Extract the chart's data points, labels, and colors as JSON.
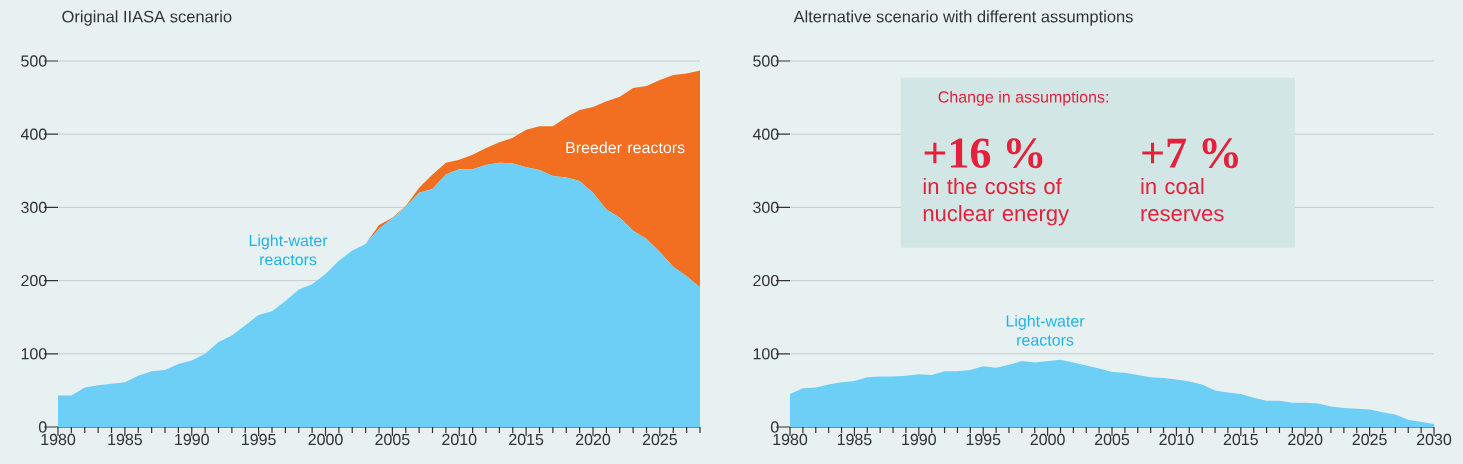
{
  "chart_data": [
    {
      "type": "area",
      "title": "Original IIASA scenario",
      "stacked": true,
      "grid": "y",
      "x": [
        1980,
        1981,
        1982,
        1983,
        1984,
        1985,
        1986,
        1987,
        1988,
        1989,
        1990,
        1991,
        1992,
        1993,
        1994,
        1995,
        1996,
        1997,
        1998,
        1999,
        2000,
        2001,
        2002,
        2003,
        2004,
        2005,
        2006,
        2007,
        2008,
        2009,
        2010,
        2011,
        2012,
        2013,
        2014,
        2015,
        2016,
        2017,
        2018,
        2019,
        2020,
        2021,
        2022,
        2023,
        2024,
        2025,
        2026,
        2027,
        2028
      ],
      "series": [
        {
          "name": "Light-water reactors",
          "color": "#6dcff6",
          "values": [
            43,
            43,
            54,
            57,
            59,
            61,
            70,
            76,
            78,
            86,
            91,
            100,
            116,
            125,
            139,
            153,
            158,
            172,
            188,
            195,
            209,
            227,
            241,
            250,
            271,
            285,
            301,
            320,
            325,
            345,
            352,
            352,
            358,
            361,
            360,
            355,
            351,
            343,
            341,
            336,
            320,
            297,
            286,
            268,
            257,
            239,
            219,
            206,
            191
          ]
        },
        {
          "name": "Breeder reactors",
          "color": "#f26f21",
          "values": [
            0,
            0,
            0,
            0,
            0,
            0,
            0,
            0,
            0,
            0,
            0,
            0,
            0,
            0,
            0,
            0,
            0,
            0,
            0,
            0,
            0,
            0,
            0,
            0,
            5,
            1,
            1,
            7,
            20,
            16,
            13,
            20,
            23,
            28,
            35,
            51,
            60,
            68,
            82,
            97,
            117,
            148,
            165,
            195,
            209,
            235,
            262,
            277,
            296
          ]
        }
      ],
      "xlim": [
        1980,
        2028
      ],
      "ylim": [
        0,
        500
      ],
      "yticks": [
        0,
        100,
        200,
        300,
        400,
        500
      ],
      "xticks": [
        1980,
        {
          "value": 1981,
          "label": null
        },
        {
          "value": 1982,
          "label": null
        },
        {
          "value": 1983,
          "label": null
        },
        {
          "value": 1984,
          "label": null
        },
        1985,
        {
          "value": 1986,
          "label": null
        },
        {
          "value": 1987,
          "label": null
        },
        {
          "value": 1988,
          "label": null
        },
        {
          "value": 1989,
          "label": null
        },
        1990,
        {
          "value": 1991,
          "label": null
        },
        {
          "value": 1992,
          "label": null
        },
        {
          "value": 1993,
          "label": null
        },
        {
          "value": 1994,
          "label": null
        },
        1995,
        {
          "value": 1996,
          "label": null
        },
        {
          "value": 1997,
          "label": null
        },
        {
          "value": 1998,
          "label": null
        },
        {
          "value": 1999,
          "label": null
        },
        2000,
        {
          "value": 2001,
          "label": null
        },
        {
          "value": 2002,
          "label": null
        },
        {
          "value": 2003,
          "label": null
        },
        {
          "value": 2004,
          "label": null
        },
        2005,
        {
          "value": 2006,
          "label": null
        },
        {
          "value": 2007,
          "label": null
        },
        {
          "value": 2008,
          "label": null
        },
        {
          "value": 2009,
          "label": null
        },
        2010,
        {
          "value": 2011,
          "label": null
        },
        {
          "value": 2012,
          "label": null
        },
        {
          "value": 2013,
          "label": null
        },
        {
          "value": 2014,
          "label": null
        },
        2015,
        {
          "value": 2016,
          "label": null
        },
        {
          "value": 2017,
          "label": null
        },
        {
          "value": 2018,
          "label": null
        },
        {
          "value": 2019,
          "label": null
        },
        2020,
        {
          "value": 2021,
          "label": null
        },
        {
          "value": 2022,
          "label": null
        },
        {
          "value": 2023,
          "label": null
        },
        {
          "value": 2024,
          "label": null
        },
        2025,
        {
          "value": 2026,
          "label": null
        },
        {
          "value": 2027,
          "label": null
        },
        {
          "value": 2028,
          "label": null
        }
      ]
    },
    {
      "type": "area",
      "title": "Alternative scenario with different assumptions",
      "grid": "y",
      "x": [
        1980,
        1981,
        1982,
        1983,
        1984,
        1985,
        1986,
        1987,
        1988,
        1989,
        1990,
        1991,
        1992,
        1993,
        1994,
        1995,
        1996,
        1997,
        1998,
        1999,
        2000,
        2001,
        2002,
        2003,
        2004,
        2005,
        2006,
        2007,
        2008,
        2009,
        2010,
        2011,
        2012,
        2013,
        2014,
        2015,
        2016,
        2017,
        2018,
        2019,
        2020,
        2021,
        2022,
        2023,
        2024,
        2025,
        2026,
        2027,
        2028,
        2029,
        2030
      ],
      "series": [
        {
          "name": "Light-water reactors",
          "color": "#6dcff6",
          "values": [
            45,
            53,
            54,
            58,
            61,
            63,
            68,
            69,
            69,
            70,
            72,
            71,
            76,
            76,
            78,
            83,
            81,
            85,
            90,
            88,
            90,
            92,
            88,
            84,
            80,
            75,
            74,
            71,
            68,
            67,
            65,
            62,
            58,
            50,
            47,
            45,
            40,
            36,
            36,
            33,
            33,
            32,
            28,
            26,
            25,
            24,
            20,
            17,
            10,
            7,
            4
          ]
        }
      ],
      "xlim": [
        1980,
        2030
      ],
      "ylim": [
        0,
        500
      ],
      "yticks": [
        0,
        100,
        200,
        300,
        400,
        500
      ],
      "xticks": [
        1980,
        {
          "value": 1981,
          "label": null
        },
        {
          "value": 1982,
          "label": null
        },
        {
          "value": 1983,
          "label": null
        },
        {
          "value": 1984,
          "label": null
        },
        1985,
        {
          "value": 1986,
          "label": null
        },
        {
          "value": 1987,
          "label": null
        },
        {
          "value": 1988,
          "label": null
        },
        {
          "value": 1989,
          "label": null
        },
        1990,
        {
          "value": 1991,
          "label": null
        },
        {
          "value": 1992,
          "label": null
        },
        {
          "value": 1993,
          "label": null
        },
        {
          "value": 1994,
          "label": null
        },
        1995,
        {
          "value": 1996,
          "label": null
        },
        {
          "value": 1997,
          "label": null
        },
        {
          "value": 1998,
          "label": null
        },
        {
          "value": 1999,
          "label": null
        },
        2000,
        {
          "value": 2001,
          "label": null
        },
        {
          "value": 2002,
          "label": null
        },
        {
          "value": 2003,
          "label": null
        },
        {
          "value": 2004,
          "label": null
        },
        2005,
        {
          "value": 2006,
          "label": null
        },
        {
          "value": 2007,
          "label": null
        },
        {
          "value": 2008,
          "label": null
        },
        {
          "value": 2009,
          "label": null
        },
        2010,
        {
          "value": 2011,
          "label": null
        },
        {
          "value": 2012,
          "label": null
        },
        {
          "value": 2013,
          "label": null
        },
        {
          "value": 2014,
          "label": null
        },
        2015,
        {
          "value": 2016,
          "label": null
        },
        {
          "value": 2017,
          "label": null
        },
        {
          "value": 2018,
          "label": null
        },
        {
          "value": 2019,
          "label": null
        },
        2020,
        {
          "value": 2021,
          "label": null
        },
        {
          "value": 2022,
          "label": null
        },
        {
          "value": 2023,
          "label": null
        },
        {
          "value": 2024,
          "label": null
        },
        2025,
        {
          "value": 2026,
          "label": null
        },
        {
          "value": 2027,
          "label": null
        },
        {
          "value": 2028,
          "label": null
        },
        {
          "value": 2029,
          "label": null
        },
        2030
      ],
      "annotations": [
        "Change in assumptions:",
        "+16 %",
        "in the costs of nuclear energy",
        "+7 %",
        "in coal reserves"
      ]
    }
  ]
}
